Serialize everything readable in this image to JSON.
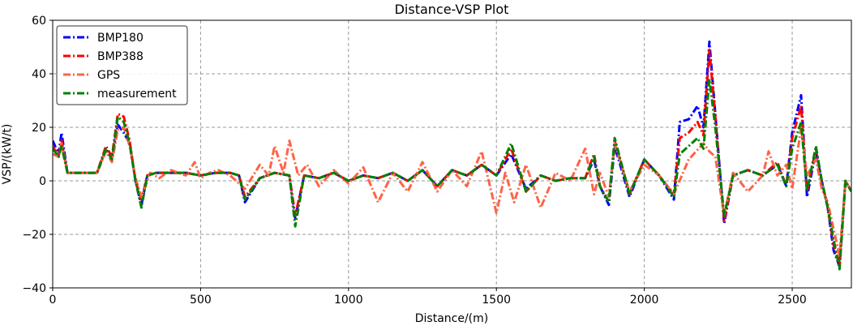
{
  "chart_data": {
    "type": "line",
    "title": "Distance-VSP Plot",
    "xlabel": "Distance/(m)",
    "ylabel": "VSP/(kW/t)",
    "xlim": [
      0,
      2700
    ],
    "ylim": [
      -40,
      60
    ],
    "xticks": [
      0,
      500,
      1000,
      1500,
      2000,
      2500
    ],
    "yticks": [
      -40,
      -20,
      0,
      20,
      40,
      60
    ],
    "grid": true,
    "legend_position": "top-left",
    "series": [
      {
        "name": "BMP180",
        "color": "#0000ff",
        "x": [
          0,
          20,
          30,
          50,
          100,
          150,
          180,
          200,
          220,
          240,
          260,
          280,
          300,
          320,
          350,
          400,
          450,
          500,
          550,
          600,
          630,
          650,
          700,
          750,
          800,
          820,
          850,
          900,
          950,
          1000,
          1050,
          1100,
          1150,
          1200,
          1250,
          1300,
          1350,
          1400,
          1450,
          1500,
          1550,
          1600,
          1650,
          1700,
          1750,
          1800,
          1830,
          1850,
          1880,
          1900,
          1950,
          2000,
          2050,
          2100,
          2120,
          2150,
          2180,
          2200,
          2220,
          2240,
          2270,
          2300,
          2350,
          2400,
          2450,
          2480,
          2500,
          2530,
          2550,
          2580,
          2600,
          2620,
          2640,
          2660,
          2680,
          2700
        ],
        "y": [
          15,
          10,
          18,
          3,
          3,
          3,
          12,
          8,
          21,
          18,
          14,
          0,
          -9,
          2,
          3,
          3,
          3,
          2,
          3,
          3,
          2,
          -8,
          1,
          3,
          2,
          -14,
          2,
          1,
          3,
          0,
          2,
          1,
          3,
          0,
          4,
          -2,
          4,
          2,
          6,
          2,
          10,
          -3,
          2,
          0,
          1,
          1,
          8,
          -2,
          -9,
          13,
          -6,
          8,
          2,
          -7,
          22,
          23,
          28,
          20,
          52,
          25,
          -16,
          2,
          4,
          2,
          6,
          -2,
          18,
          32,
          -6,
          11,
          0,
          -10,
          -26,
          -32,
          0,
          -4
        ]
      },
      {
        "name": "BMP388",
        "color": "#ff0000",
        "x": [
          0,
          20,
          30,
          50,
          100,
          150,
          180,
          200,
          220,
          240,
          260,
          280,
          300,
          320,
          350,
          400,
          450,
          500,
          550,
          600,
          630,
          650,
          700,
          750,
          800,
          820,
          850,
          900,
          950,
          1000,
          1050,
          1100,
          1150,
          1200,
          1250,
          1300,
          1350,
          1400,
          1450,
          1500,
          1550,
          1600,
          1650,
          1700,
          1750,
          1800,
          1830,
          1850,
          1880,
          1900,
          1950,
          2000,
          2050,
          2100,
          2120,
          2150,
          2180,
          2200,
          2220,
          2240,
          2270,
          2300,
          2350,
          2400,
          2450,
          2480,
          2500,
          2530,
          2550,
          2580,
          2600,
          2620,
          2640,
          2660,
          2680,
          2700
        ],
        "y": [
          13,
          9,
          15,
          3,
          3,
          3,
          13,
          9,
          25,
          24,
          15,
          0,
          -7,
          2,
          3,
          3,
          3,
          2,
          3,
          3,
          2,
          -6,
          1,
          3,
          2,
          -13,
          2,
          1,
          3,
          0,
          2,
          1,
          3,
          0,
          4,
          -2,
          4,
          2,
          6,
          2,
          12,
          -4,
          2,
          0,
          1,
          1,
          10,
          -2,
          -8,
          15,
          -5,
          8,
          2,
          -5,
          16,
          18,
          22,
          17,
          49,
          24,
          -15,
          2,
          4,
          2,
          7,
          -2,
          16,
          28,
          -4,
          12,
          0,
          -10,
          -24,
          -31,
          0,
          -4
        ]
      },
      {
        "name": "GPS",
        "color": "#ff6347",
        "x": [
          0,
          20,
          30,
          50,
          100,
          150,
          180,
          200,
          220,
          240,
          260,
          280,
          300,
          330,
          360,
          400,
          450,
          480,
          500,
          530,
          560,
          600,
          650,
          700,
          730,
          750,
          780,
          800,
          830,
          860,
          900,
          950,
          1000,
          1050,
          1100,
          1150,
          1200,
          1250,
          1300,
          1350,
          1400,
          1450,
          1500,
          1530,
          1560,
          1600,
          1650,
          1700,
          1750,
          1800,
          1830,
          1850,
          1880,
          1900,
          1950,
          2000,
          2050,
          2100,
          2150,
          2200,
          2220,
          2240,
          2270,
          2300,
          2350,
          2400,
          2420,
          2450,
          2480,
          2500,
          2530,
          2550,
          2580,
          2600,
          2620,
          2640,
          2660,
          2680,
          2700
        ],
        "y": [
          10,
          9,
          14,
          3,
          3,
          3,
          11,
          7,
          19,
          20,
          13,
          1,
          -6,
          3,
          1,
          4,
          2,
          7,
          1,
          3,
          4,
          2,
          -3,
          6,
          2,
          13,
          3,
          15,
          2,
          6,
          -2,
          4,
          -1,
          5,
          -8,
          3,
          -4,
          7,
          -4,
          4,
          -2,
          11,
          -12,
          3,
          -8,
          6,
          -10,
          3,
          0,
          12,
          -5,
          3,
          -6,
          14,
          -4,
          6,
          2,
          -5,
          8,
          14,
          11,
          9,
          -13,
          3,
          -4,
          2,
          11,
          2,
          6,
          -3,
          20,
          2,
          8,
          -3,
          -8,
          -18,
          -28,
          0,
          -4
        ]
      },
      {
        "name": "measurement",
        "color": "#008000",
        "x": [
          0,
          20,
          30,
          50,
          100,
          150,
          180,
          200,
          220,
          240,
          260,
          280,
          300,
          320,
          350,
          400,
          450,
          500,
          550,
          600,
          630,
          650,
          700,
          750,
          800,
          820,
          850,
          900,
          950,
          1000,
          1050,
          1100,
          1150,
          1200,
          1250,
          1300,
          1350,
          1400,
          1450,
          1500,
          1550,
          1600,
          1650,
          1700,
          1750,
          1800,
          1830,
          1850,
          1880,
          1900,
          1950,
          2000,
          2050,
          2100,
          2120,
          2150,
          2180,
          2200,
          2220,
          2240,
          2270,
          2300,
          2350,
          2400,
          2450,
          2480,
          2500,
          2530,
          2550,
          2580,
          2600,
          2620,
          2640,
          2660,
          2680,
          2700
        ],
        "y": [
          12,
          9,
          13,
          3,
          3,
          3,
          12,
          8,
          24,
          22,
          14,
          0,
          -10,
          2,
          3,
          3,
          3,
          2,
          3,
          3,
          2,
          -7,
          1,
          3,
          2,
          -17,
          2,
          1,
          3,
          0,
          2,
          1,
          3,
          0,
          4,
          -2,
          4,
          2,
          6,
          2,
          14,
          -4,
          2,
          0,
          1,
          1,
          9,
          -2,
          -8,
          16,
          -5,
          8,
          2,
          -6,
          10,
          13,
          16,
          12,
          38,
          20,
          -13,
          2,
          4,
          2,
          6,
          -2,
          12,
          22,
          -4,
          13,
          0,
          -10,
          -22,
          -33,
          0,
          -4
        ]
      }
    ]
  }
}
